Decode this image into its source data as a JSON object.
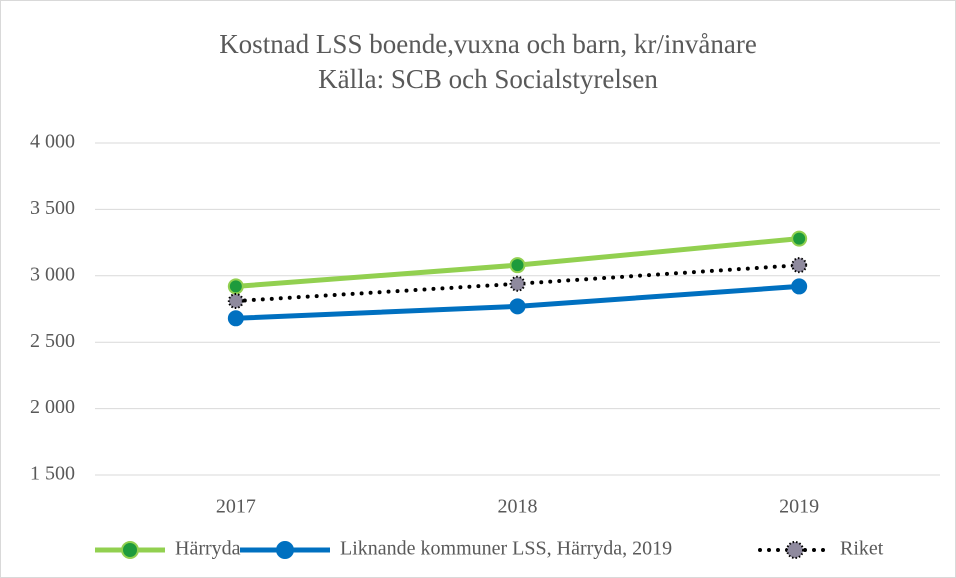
{
  "chart_data": {
    "type": "line",
    "title": [
      "Kostnad LSS boende,vuxna och barn, kr/invånare",
      "Källa: SCB och Socialstyrelsen"
    ],
    "categories": [
      "2017",
      "2018",
      "2019"
    ],
    "series": [
      {
        "name": "Härryda",
        "color": "#92d050",
        "marker_color": "#1e9b3c",
        "dash": "solid",
        "values": [
          2920,
          3080,
          3280
        ]
      },
      {
        "name": "Liknande kommuner LSS, Härryda, 2019",
        "color": "#0070c0",
        "marker_color": "#0070c0",
        "dash": "solid",
        "values": [
          2680,
          2770,
          2920
        ]
      },
      {
        "name": "Riket",
        "color": "#000000",
        "marker_color": "#8f8a9e",
        "dash": "dotted",
        "values": [
          2810,
          2940,
          3080
        ]
      }
    ],
    "ylim": [
      1500,
      4000
    ],
    "yticks": [
      {
        "value": 1500,
        "label": "1 500"
      },
      {
        "value": 2000,
        "label": "2 000"
      },
      {
        "value": 2500,
        "label": "2 500"
      },
      {
        "value": 3000,
        "label": "3 000"
      },
      {
        "value": 3500,
        "label": "3 500"
      },
      {
        "value": 4000,
        "label": "4 000"
      }
    ],
    "grid": true,
    "legend": "bottom"
  }
}
